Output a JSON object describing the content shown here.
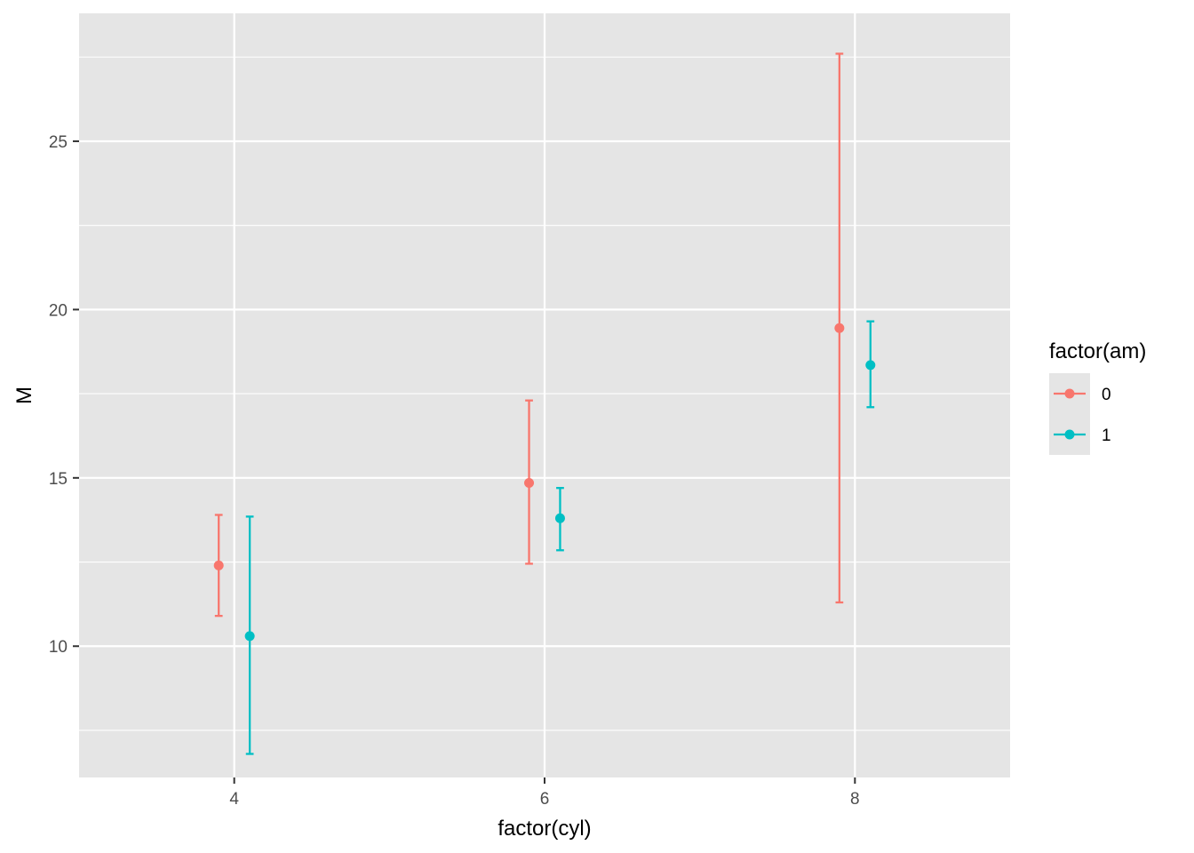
{
  "chart_data": {
    "type": "scatter",
    "subtype": "point-with-errorbars",
    "title": "",
    "xlabel": "factor(cyl)",
    "ylabel": "M",
    "x_categories": [
      "4",
      "6",
      "8"
    ],
    "x_range": [
      3,
      9
    ],
    "ylim": [
      6.1,
      28.8
    ],
    "y_ticks": [
      10,
      15,
      20,
      25
    ],
    "dodge_offset": 0.1,
    "grid": true,
    "panel_background": "#e5e5e5",
    "legend": {
      "title": "factor(am)",
      "position": "right"
    },
    "series": [
      {
        "name": "0",
        "color": "#f8766d",
        "points": [
          {
            "x": "4",
            "y": 12.4,
            "ymin": 10.9,
            "ymax": 13.9
          },
          {
            "x": "6",
            "y": 14.85,
            "ymin": 12.45,
            "ymax": 17.3
          },
          {
            "x": "8",
            "y": 19.45,
            "ymin": 11.3,
            "ymax": 27.6
          }
        ]
      },
      {
        "name": "1",
        "color": "#00bfc4",
        "points": [
          {
            "x": "4",
            "y": 10.3,
            "ymin": 6.8,
            "ymax": 13.85
          },
          {
            "x": "6",
            "y": 13.8,
            "ymin": 12.85,
            "ymax": 14.7
          },
          {
            "x": "8",
            "y": 18.35,
            "ymin": 17.1,
            "ymax": 19.65
          }
        ]
      }
    ]
  }
}
